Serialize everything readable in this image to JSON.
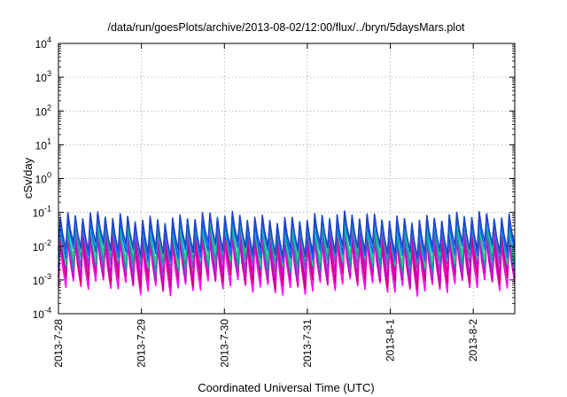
{
  "chart_data": {
    "type": "line",
    "title": "/data/run/goesPlots/archive/2013-08-02/12:00/flux/../bryn/5daysMars.plot",
    "xlabel": "Coordinated Universal Time (UTC)",
    "ylabel": "cSv/day",
    "yscale": "log",
    "ylim": [
      0.0001,
      10000
    ],
    "xlim": [
      "2013-07-28",
      "2013-08-02 12:00"
    ],
    "grid": true,
    "x_ticks": [
      "2013-7-28",
      "2013-7-29",
      "2013-7-30",
      "2013-7-31",
      "2013-8-1",
      "2013-8-2"
    ],
    "y_ticks": [
      {
        "base": "10",
        "exp": "-4"
      },
      {
        "base": "10",
        "exp": "-3"
      },
      {
        "base": "10",
        "exp": "-2"
      },
      {
        "base": "10",
        "exp": "-1"
      },
      {
        "base": "10",
        "exp": "0"
      },
      {
        "base": "10",
        "exp": "1"
      },
      {
        "base": "10",
        "exp": "2"
      },
      {
        "base": "10",
        "exp": "3"
      },
      {
        "base": "10",
        "exp": "4"
      }
    ],
    "cycles_per_day": 11,
    "series": [
      {
        "color": "#ff00ff",
        "peak": 0.012,
        "trough": 0.0006
      },
      {
        "color": "#cc0066",
        "peak": 0.018,
        "trough": 0.0009
      },
      {
        "color": "#cc00cc",
        "peak": 0.025,
        "trough": 0.0013
      },
      {
        "color": "#8844cc",
        "peak": 0.035,
        "trough": 0.002
      },
      {
        "color": "#00a0a0",
        "peak": 0.045,
        "trough": 0.003
      },
      {
        "color": "#22cc88",
        "peak": 0.05,
        "trough": 0.004
      },
      {
        "color": "#0066ff",
        "peak": 0.06,
        "trough": 0.006
      },
      {
        "color": "#2244cc",
        "peak": 0.07,
        "trough": 0.008
      }
    ]
  }
}
